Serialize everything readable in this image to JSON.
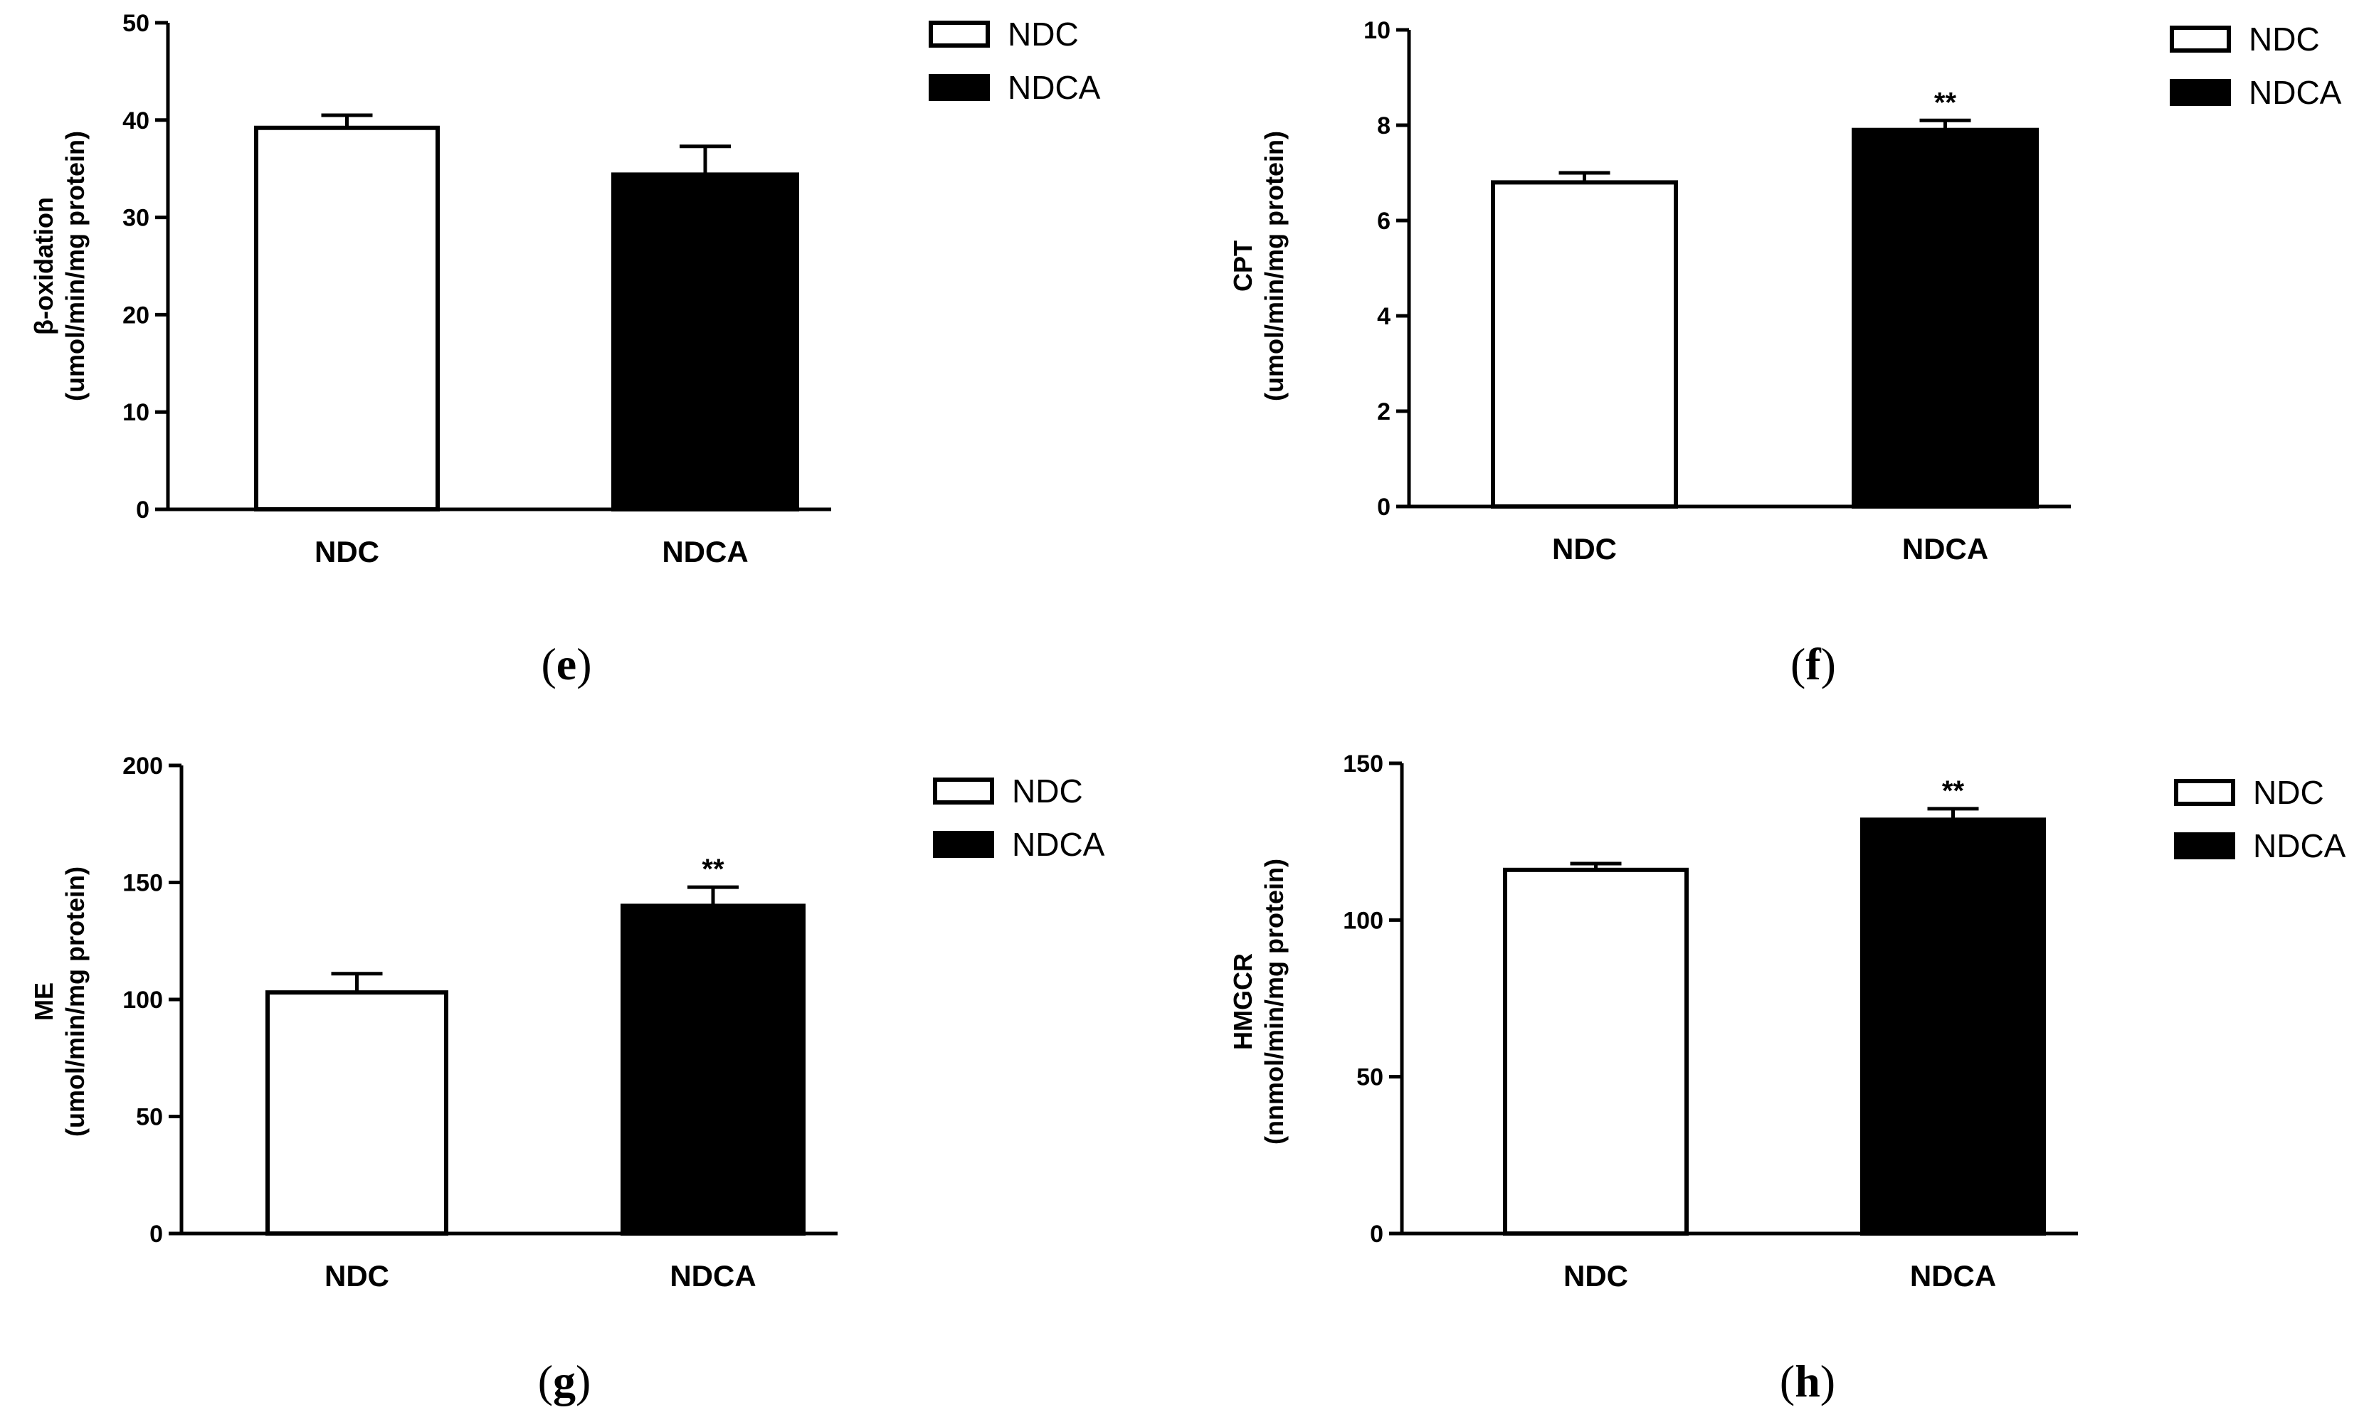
{
  "colors": {
    "ndc_fill": "#ffffff",
    "ndca_fill": "#000000",
    "stroke": "#000000"
  },
  "chart_data": [
    {
      "panel": "e",
      "type": "bar",
      "categories": [
        "NDC",
        "NDCA"
      ],
      "values": [
        39.2,
        34.4
      ],
      "errors": [
        1.3,
        2.9
      ],
      "significance": [
        "",
        ""
      ],
      "ylabel_line1": "β-oxidation",
      "ylabel_line2": "(umol/min/mg protein)",
      "ylim": [
        0,
        50
      ],
      "yticks": [
        0,
        10,
        20,
        30,
        40,
        50
      ],
      "legend": [
        "NDC",
        "NDCA"
      ],
      "label_open": "(",
      "label_letter": "e",
      "label_close": ")"
    },
    {
      "panel": "f",
      "type": "bar",
      "categories": [
        "NDC",
        "NDCA"
      ],
      "values": [
        6.8,
        7.9
      ],
      "errors": [
        0.2,
        0.2
      ],
      "significance": [
        "",
        "**"
      ],
      "ylabel_line1": "CPT",
      "ylabel_line2": "(umol/min/mg protein)",
      "ylim": [
        0,
        10
      ],
      "yticks": [
        0,
        2,
        4,
        6,
        8,
        10
      ],
      "legend": [
        "NDC",
        "NDCA"
      ],
      "label_open": "(",
      "label_letter": "f",
      "label_close": ")"
    },
    {
      "panel": "g",
      "type": "bar",
      "categories": [
        "NDC",
        "NDCA"
      ],
      "values": [
        103,
        140
      ],
      "errors": [
        8,
        8
      ],
      "significance": [
        "",
        "**"
      ],
      "ylabel_line1": "ME",
      "ylabel_line2": "(umol/min/mg protein)",
      "ylim": [
        0,
        200
      ],
      "yticks": [
        0,
        50,
        100,
        150,
        200
      ],
      "legend": [
        "NDC",
        "NDCA"
      ],
      "label_open": "(",
      "label_letter": "g",
      "label_close": ")"
    },
    {
      "panel": "h",
      "type": "bar",
      "categories": [
        "NDC",
        "NDCA"
      ],
      "values": [
        116,
        132
      ],
      "errors": [
        2,
        3.5
      ],
      "significance": [
        "",
        "**"
      ],
      "ylabel_line1": "HMGCR",
      "ylabel_line2": "(nnmol/min/mg protein)",
      "ylim": [
        0,
        150
      ],
      "yticks": [
        0,
        50,
        100,
        150
      ],
      "legend": [
        "NDC",
        "NDCA"
      ],
      "label_open": "(",
      "label_letter": "h",
      "label_close": ")"
    }
  ]
}
